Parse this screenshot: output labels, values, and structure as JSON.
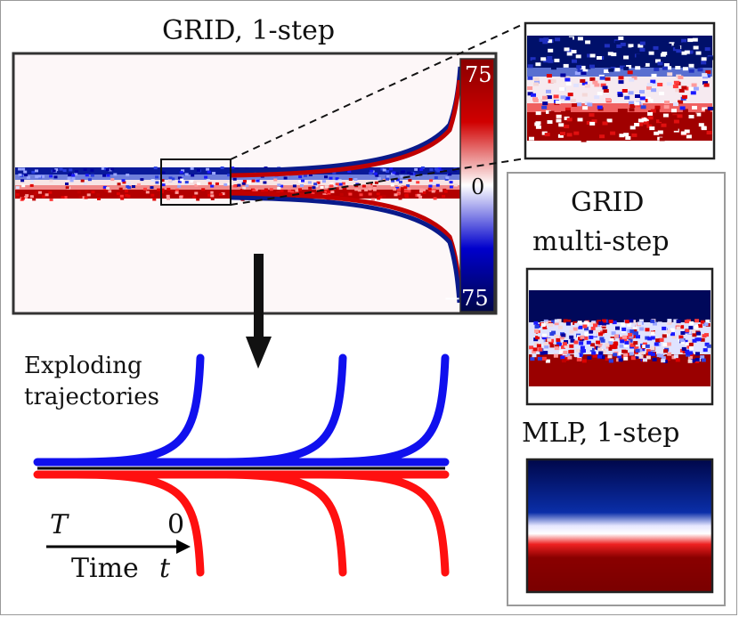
{
  "main_plot": {
    "title": "GRID, 1-step",
    "colorbar": {
      "max_label": "75",
      "mid_label": "0",
      "min_label": "−75",
      "max_value": 75,
      "min_value": -75,
      "colors": {
        "high": "#b50000",
        "mid": "#ffffff",
        "low": "#00107a"
      }
    }
  },
  "right_panel": {
    "grid_multi_title_line1": "GRID",
    "grid_multi_title_line2": "multi-step",
    "mlp_title": "MLP, 1-step"
  },
  "trajectories": {
    "label_line1": "Exploding",
    "label_line2": "trajectories",
    "colors": {
      "upper": "#1010ee",
      "lower": "#ff1010",
      "baseline": "#000000"
    }
  },
  "time_axis": {
    "start_label": "T",
    "end_label": "0",
    "axis_word": "Time",
    "axis_var": "t"
  }
}
